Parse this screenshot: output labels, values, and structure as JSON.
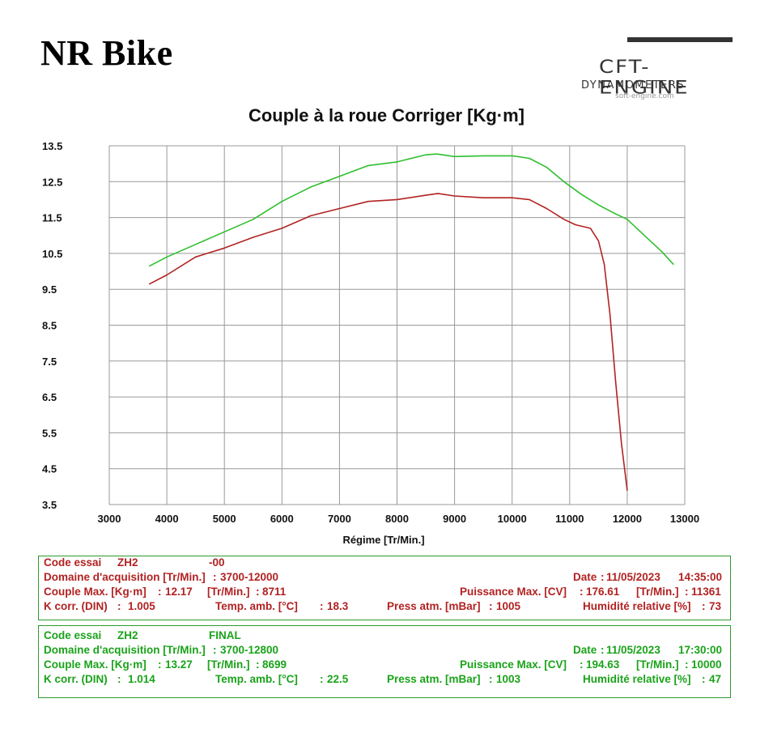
{
  "header": {
    "title": "NR Bike",
    "logo": {
      "name": "CFT-ENGINE",
      "subtitle": "DYNAMOMETERS",
      "url": "soft-engine.com"
    }
  },
  "colors": {
    "run1": "#b22222",
    "run2": "#2fbf2f",
    "grid": "#999999",
    "box_border": "#2e9a2e"
  },
  "chart_data": {
    "type": "line",
    "title": "Couple à la roue Corriger [Kg·m]",
    "xlabel": "Régime [Tr/Min.]",
    "ylabel": "",
    "xlim": [
      3000,
      13000
    ],
    "ylim": [
      3.5,
      13.5
    ],
    "x_ticks": [
      "3000",
      "4000",
      "5000",
      "6000",
      "7000",
      "8000",
      "9000",
      "10000",
      "11000",
      "12000",
      "13000"
    ],
    "y_ticks": [
      "13.5",
      "12.5",
      "11.5",
      "10.5",
      "9.5",
      "8.5",
      "7.5",
      "6.5",
      "5.5",
      "4.5",
      "3.5"
    ],
    "grid": true,
    "series": [
      {
        "name": "ZH2 -00",
        "color": "#b22222",
        "x": [
          3700,
          4000,
          4500,
          5000,
          5500,
          6000,
          6500,
          7000,
          7500,
          8000,
          8500,
          8711,
          9000,
          9500,
          10000,
          10300,
          10600,
          10900,
          11100,
          11361,
          11500,
          11600,
          11700,
          11800,
          11900,
          12000
        ],
        "y": [
          9.65,
          9.9,
          10.4,
          10.65,
          10.95,
          11.2,
          11.55,
          11.75,
          11.95,
          12.0,
          12.12,
          12.17,
          12.1,
          12.05,
          12.05,
          12.0,
          11.75,
          11.45,
          11.3,
          11.2,
          10.85,
          10.2,
          8.8,
          6.9,
          5.2,
          3.9
        ]
      },
      {
        "name": "ZH2 FINAL",
        "color": "#2fbf2f",
        "x": [
          3700,
          4000,
          4500,
          5000,
          5500,
          6000,
          6500,
          7000,
          7500,
          8000,
          8500,
          8699,
          9000,
          9500,
          10000,
          10300,
          10600,
          10900,
          11200,
          11500,
          11800,
          12000,
          12300,
          12600,
          12800
        ],
        "y": [
          10.15,
          10.4,
          10.75,
          11.1,
          11.45,
          11.95,
          12.35,
          12.65,
          12.95,
          13.05,
          13.25,
          13.27,
          13.2,
          13.22,
          13.22,
          13.15,
          12.9,
          12.5,
          12.15,
          11.85,
          11.6,
          11.45,
          11.0,
          10.55,
          10.2
        ]
      }
    ]
  },
  "run1": {
    "test_label": "Code essai",
    "test_code": "ZH2",
    "test_suffix": "-00",
    "range_label": "Domaine d'acquisition [Tr/Min.]",
    "range_value": "3700-12000",
    "date_label": "Date",
    "date_value": "11/05/2023",
    "time_value": "14:35:00",
    "torque_label": "Couple Max. [Kg·m]",
    "torque_value": "12.17",
    "torque_rpm_label": "[Tr/Min.]",
    "torque_rpm_value": "8711",
    "power_label": "Puissance Max. [CV]",
    "power_value": "176.61",
    "power_rpm_label": "[Tr/Min.]",
    "power_rpm_value": "11361",
    "kcorr_label": "K corr. (DIN)",
    "kcorr_value": "1.005",
    "temp_label": "Temp. amb. [°C]",
    "temp_value": "18.3",
    "press_label": "Press atm. [mBar]",
    "press_value": "1005",
    "hum_label": "Humidité relative [%]",
    "hum_value": "73"
  },
  "run2": {
    "test_label": "Code essai",
    "test_code": "ZH2",
    "test_suffix": "FINAL",
    "range_label": "Domaine d'acquisition [Tr/Min.]",
    "range_value": "3700-12800",
    "date_label": "Date",
    "date_value": "11/05/2023",
    "time_value": "17:30:00",
    "torque_label": "Couple Max. [Kg·m]",
    "torque_value": "13.27",
    "torque_rpm_label": "[Tr/Min.]",
    "torque_rpm_value": "8699",
    "power_label": "Puissance Max. [CV]",
    "power_value": "194.63",
    "power_rpm_label": "[Tr/Min.]",
    "power_rpm_value": "10000",
    "kcorr_label": "K corr. (DIN)",
    "kcorr_value": "1.014",
    "temp_label": "Temp. amb. [°C]",
    "temp_value": "22.5",
    "press_label": "Press atm. [mBar]",
    "press_value": "1003",
    "hum_label": "Humidité relative [%]",
    "hum_value": "47"
  }
}
